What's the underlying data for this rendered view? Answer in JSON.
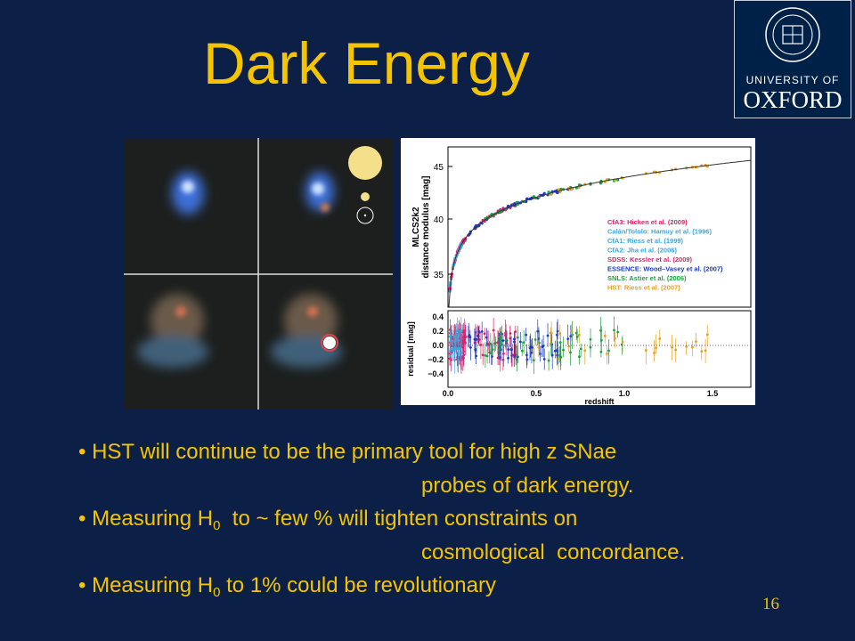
{
  "slide": {
    "title": "Dark Energy",
    "logo": {
      "line1": "UNIVERSITY OF",
      "line2": "OXFORD"
    },
    "figure": {
      "y_label_1": "MLCS2k2",
      "y_label_2": "distance modulus [mag]",
      "y_ticks": [
        "45",
        "40",
        "35"
      ],
      "residual_label": "residual [mag]",
      "residual_ticks": [
        "0.4",
        "0.2",
        "0.0",
        "−0.2",
        "−0.4"
      ],
      "x_ticks": [
        "0.0",
        "0.5",
        "1.0",
        "1.5"
      ],
      "x_label": "redshift",
      "legend": [
        {
          "text": "CfA3: Hicken et al. (2009)",
          "color": "#e0206a"
        },
        {
          "text": "Calán/Tololo: Hamuy et al. (1996)",
          "color": "#3aa8e0"
        },
        {
          "text": "CfA1: Riess et al. (1999)",
          "color": "#3aa8e0"
        },
        {
          "text": "CfA2: Jha et al. (2006)",
          "color": "#3aa8e0"
        },
        {
          "text": "SDSS: Kessler et al. (2009)",
          "color": "#e0206a"
        },
        {
          "text": "ESSENCE: Wood–Vasey et al. (2007)",
          "color": "#1a3cc8"
        },
        {
          "text": "SNLS: Astier et al. (2006)",
          "color": "#20a040"
        },
        {
          "text": "HST: Riess et al. (2007)",
          "color": "#e8a020"
        }
      ]
    },
    "bullets": [
      {
        "lines": [
          [
            "• HST will continue to be the primary tool for high z SNae"
          ],
          [
            "probes of dark energy."
          ]
        ]
      },
      {
        "lines": [
          [
            "• Measuring H",
            "0",
            "  to ~ few % will tighten constraints on"
          ],
          [
            "cosmological  concordance."
          ]
        ]
      },
      {
        "lines": [
          [
            "• Measuring H",
            "0",
            " to 1% could be revolutionary"
          ]
        ]
      }
    ],
    "page_number": "16"
  }
}
